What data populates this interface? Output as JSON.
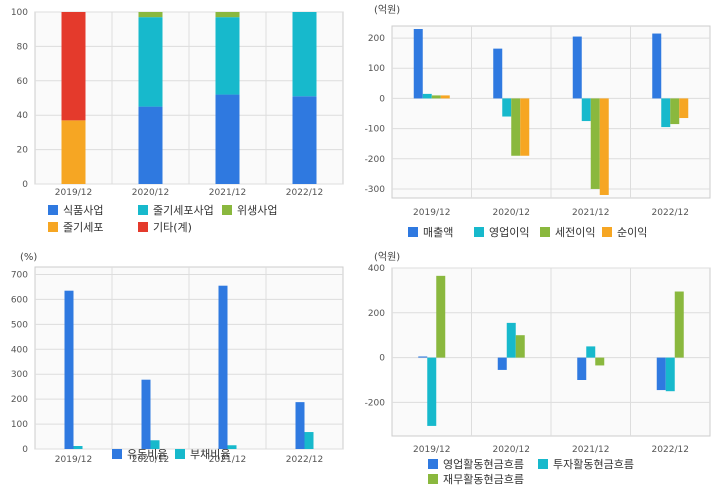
{
  "colors": {
    "blue": "#2f79e0",
    "cyan": "#17b9cc",
    "green": "#8ab83e",
    "orange": "#f6a623",
    "red": "#e43a2c",
    "grid": "#dddddd",
    "frame": "#cccccc",
    "bg": "#fafafa"
  },
  "chart_data": [
    {
      "type": "bar",
      "stacked": true,
      "categories": [
        "2019/12",
        "2020/12",
        "2021/12",
        "2022/12"
      ],
      "ylim": [
        0,
        100
      ],
      "yticks": [
        0,
        20,
        40,
        60,
        80,
        100
      ],
      "unit": "",
      "grid": true,
      "legend_position": "bottom",
      "series": [
        {
          "name": "식품사업",
          "color": "blue",
          "values": [
            0,
            45,
            52,
            51
          ]
        },
        {
          "name": "줄기세포",
          "color": "orange",
          "values": [
            37,
            0,
            0,
            0
          ]
        },
        {
          "name": "줄기세포사업",
          "color": "cyan",
          "values": [
            0,
            52,
            45,
            49
          ]
        },
        {
          "name": "기타(계)",
          "color": "red",
          "values": [
            63,
            0,
            0,
            0
          ]
        },
        {
          "name": "위생사업",
          "color": "green",
          "values": [
            0,
            3,
            3,
            0
          ]
        }
      ]
    },
    {
      "type": "bar",
      "categories": [
        "2019/12",
        "2020/12",
        "2021/12",
        "2022/12"
      ],
      "ylim": [
        -330,
        240
      ],
      "yticks": [
        -300,
        -200,
        -100,
        0,
        100,
        200
      ],
      "unit": "(억원)",
      "grid": true,
      "legend_position": "bottom",
      "series": [
        {
          "name": "매출액",
          "color": "blue",
          "values": [
            230,
            165,
            205,
            215
          ]
        },
        {
          "name": "영업이익",
          "color": "cyan",
          "values": [
            15,
            -60,
            -75,
            -95
          ]
        },
        {
          "name": "세전이익",
          "color": "green",
          "values": [
            10,
            -190,
            -300,
            -85
          ]
        },
        {
          "name": "순이익",
          "color": "orange",
          "values": [
            10,
            -190,
            -320,
            -65
          ]
        }
      ]
    },
    {
      "type": "bar",
      "categories": [
        "2019/12",
        "2020/12",
        "2021/12",
        "2022/12"
      ],
      "ylim": [
        0,
        730
      ],
      "yticks": [
        0,
        100,
        200,
        300,
        400,
        500,
        600,
        700
      ],
      "unit": "(%)",
      "grid": true,
      "legend_position": "bottom",
      "series": [
        {
          "name": "유동비율",
          "color": "blue",
          "values": [
            635,
            278,
            655,
            188
          ]
        },
        {
          "name": "부채비율",
          "color": "cyan",
          "values": [
            12,
            35,
            15,
            68
          ]
        }
      ]
    },
    {
      "type": "bar",
      "categories": [
        "2019/12",
        "2020/12",
        "2021/12",
        "2022/12"
      ],
      "ylim": [
        -350,
        400
      ],
      "yticks": [
        -200,
        0,
        200,
        400
      ],
      "unit": "(억원)",
      "grid": true,
      "legend_position": "bottom",
      "series": [
        {
          "name": "영업활동현금흐름",
          "color": "blue",
          "values": [
            5,
            -55,
            -100,
            -145
          ]
        },
        {
          "name": "투자활동현금흐름",
          "color": "cyan",
          "values": [
            -305,
            155,
            50,
            -150
          ]
        },
        {
          "name": "재무활동현금흐름",
          "color": "green",
          "values": [
            365,
            100,
            -35,
            295
          ]
        }
      ]
    }
  ]
}
